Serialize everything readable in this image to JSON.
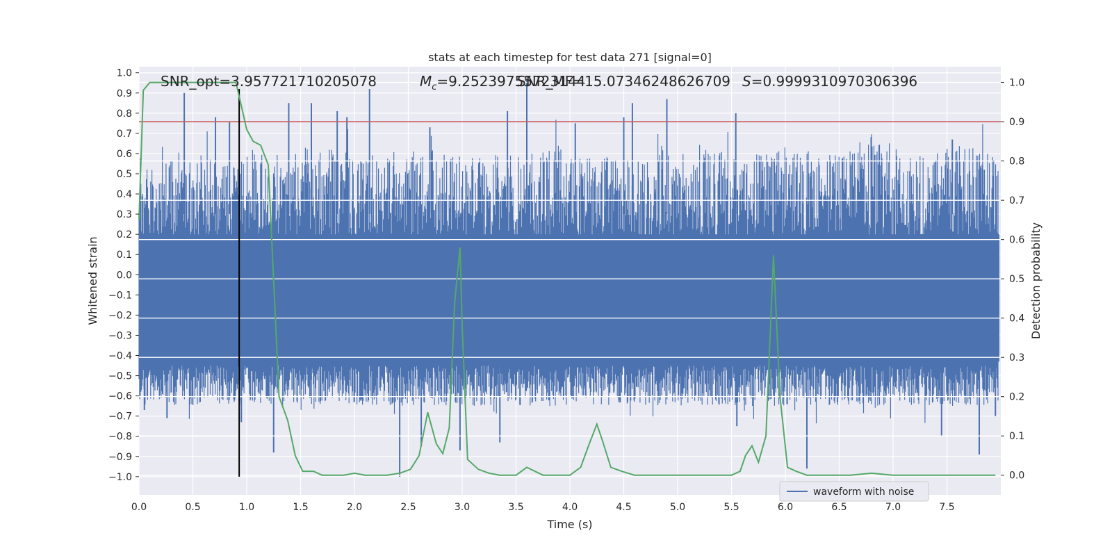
{
  "chart_data": {
    "type": "line",
    "title": "stats at each timestep for test data 271 [signal=0]",
    "xlabel": "Time (s)",
    "ylabel": "Whitened strain",
    "y2label": "Detection probability",
    "xlim": [
      0.0,
      8.0
    ],
    "ylim": [
      -1.09,
      1.03
    ],
    "y2lim": [
      -0.05,
      1.04
    ],
    "grid": true,
    "x_ticks": [
      "0.0",
      "0.5",
      "1.0",
      "1.5",
      "2.0",
      "2.5",
      "3.0",
      "3.5",
      "4.0",
      "4.5",
      "5.0",
      "5.5",
      "6.0",
      "6.5",
      "7.0",
      "7.5"
    ],
    "y_ticks": [
      "1.0",
      "0.9",
      "0.8",
      "0.7",
      "0.6",
      "0.5",
      "0.4",
      "0.3",
      "0.2",
      "0.1",
      "0.0",
      "−0.1",
      "−0.2",
      "−0.3",
      "−0.4",
      "−0.5",
      "−0.6",
      "−0.7",
      "−0.8",
      "−0.9",
      "−1.0"
    ],
    "y2_ticks": [
      "1.0",
      "0.9",
      "0.8",
      "0.7",
      "0.6",
      "0.5",
      "0.4",
      "0.3",
      "0.2",
      "0.1",
      "0.0"
    ],
    "annotations": {
      "snr_opt": "SNR_opt=3.957721710205078",
      "mc_prefix": "=9.25239755723144",
      "snr_overlap": "SNR_MF=15.07346248626709",
      "s_value": "=0.9999310970306396"
    },
    "threshold": 0.9,
    "peak_time": 0.93,
    "series": [
      {
        "name": "waveform with noise",
        "color": "#4c72b0",
        "note_envelope_upper": [
          0.55,
          0.62,
          0.6,
          0.58,
          0.62,
          0.6,
          0.65,
          0.62,
          0.6,
          0.58,
          0.62,
          0.6,
          0.58,
          0.62,
          0.6,
          0.66,
          0.62,
          0.6,
          0.58,
          0.64,
          0.6,
          0.62,
          0.6,
          0.64,
          0.62,
          0.6,
          0.62,
          0.66,
          0.6,
          0.62,
          0.64,
          0.6
        ],
        "spikes_upper": [
          [
            0.42,
            0.9
          ],
          [
            0.71,
            0.78
          ],
          [
            0.84,
            0.76
          ],
          [
            1.39,
            0.85
          ],
          [
            1.6,
            0.85
          ],
          [
            1.84,
            0.81
          ],
          [
            1.93,
            0.78
          ],
          [
            2.14,
            0.92
          ],
          [
            2.7,
            0.73
          ],
          [
            3.42,
            0.81
          ],
          [
            3.6,
            0.96
          ],
          [
            4.05,
            0.75
          ],
          [
            4.5,
            0.78
          ],
          [
            4.58,
            0.85
          ],
          [
            4.9,
            0.87
          ],
          [
            5.54,
            0.8
          ],
          [
            7.55,
            0.67
          ]
        ],
        "spikes_lower": [
          [
            0.05,
            -0.67
          ],
          [
            0.26,
            -0.71
          ],
          [
            0.95,
            -0.73
          ],
          [
            1.25,
            -0.88
          ],
          [
            2.42,
            -1.0
          ],
          [
            2.62,
            -0.85
          ],
          [
            2.98,
            -0.87
          ],
          [
            3.35,
            -0.83
          ],
          [
            5.55,
            -0.75
          ],
          [
            6.2,
            -0.96
          ],
          [
            7.45,
            -0.8
          ],
          [
            7.8,
            -0.89
          ],
          [
            7.95,
            -0.7
          ]
        ]
      },
      {
        "name": "",
        "color": "#55a868",
        "axis": "right",
        "x": [
          0.0,
          0.04,
          0.1,
          0.3,
          0.6,
          0.75,
          0.9,
          1.0,
          1.06,
          1.13,
          1.2,
          1.3,
          1.38,
          1.45,
          1.52,
          1.62,
          1.7,
          1.8,
          1.9,
          2.0,
          2.1,
          2.2,
          2.3,
          2.42,
          2.52,
          2.6,
          2.68,
          2.76,
          2.82,
          2.88,
          2.93,
          2.98,
          3.0,
          3.05,
          3.15,
          3.25,
          3.35,
          3.5,
          3.6,
          3.75,
          3.9,
          4.0,
          4.1,
          4.18,
          4.25,
          4.3,
          4.38,
          4.48,
          4.6,
          4.8,
          5.0,
          5.3,
          5.5,
          5.58,
          5.63,
          5.69,
          5.75,
          5.82,
          5.89,
          5.95,
          6.02,
          6.1,
          6.2,
          6.4,
          6.6,
          6.8,
          7.0,
          7.2,
          7.5,
          7.8,
          7.95
        ],
        "y": [
          0.65,
          0.98,
          1.0,
          1.0,
          1.0,
          1.0,
          1.0,
          0.88,
          0.85,
          0.84,
          0.79,
          0.2,
          0.14,
          0.05,
          0.01,
          0.01,
          0.0,
          0.0,
          0.0,
          0.005,
          0.0,
          0.0,
          0.0,
          0.005,
          0.015,
          0.05,
          0.16,
          0.08,
          0.055,
          0.12,
          0.44,
          0.58,
          0.38,
          0.04,
          0.015,
          0.005,
          0.0,
          0.0,
          0.02,
          0.0,
          0.0,
          0.0,
          0.02,
          0.08,
          0.13,
          0.09,
          0.02,
          0.01,
          0.0,
          0.0,
          0.0,
          0.0,
          0.0,
          0.01,
          0.05,
          0.075,
          0.033,
          0.1,
          0.56,
          0.2,
          0.02,
          0.01,
          0.0,
          0.0,
          0.0,
          0.005,
          0.0,
          0.0,
          0.0,
          0.0,
          0.0
        ]
      }
    ],
    "threshold_color": "#c44e52",
    "marker_color": "#000000",
    "legend_position": "lower right"
  }
}
